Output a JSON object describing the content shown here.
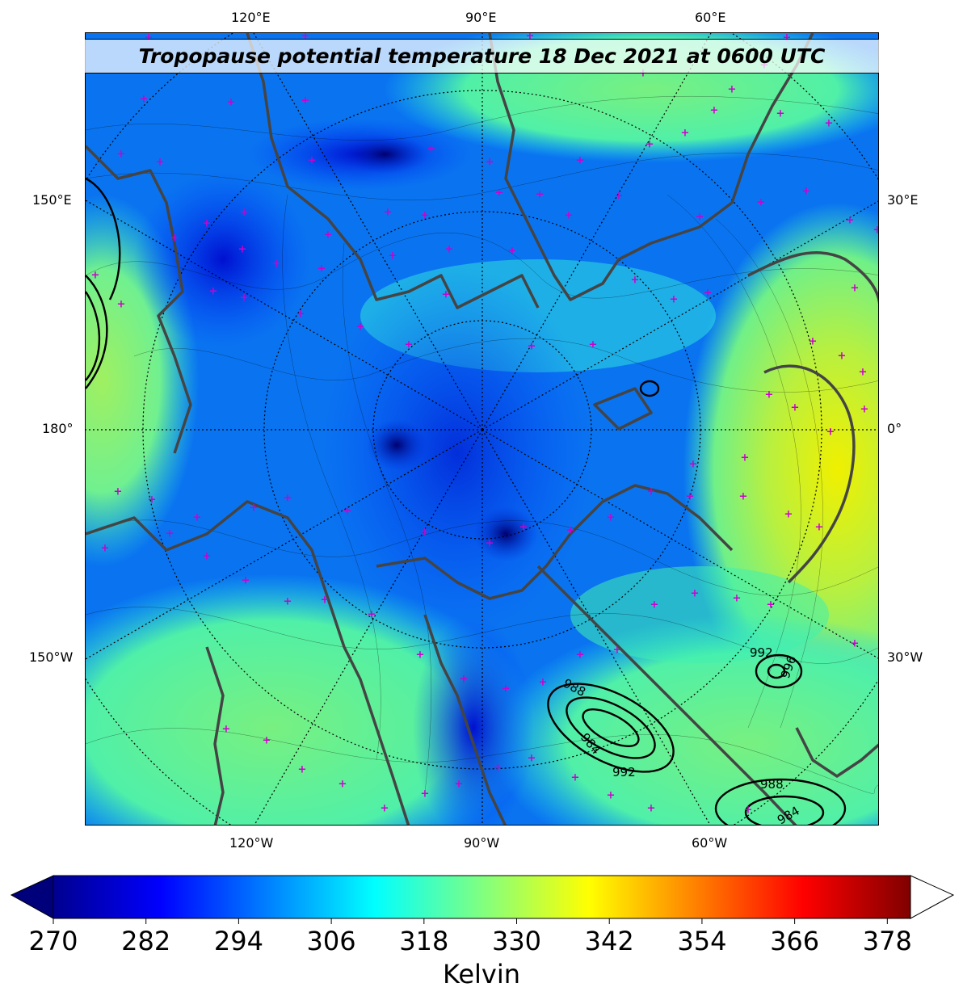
{
  "title": "Tropopause potential temperature 18 Dec 2021 at 0600 UTC",
  "projection": "north-polar-stereographic",
  "axis_labels": {
    "top": [
      "120°E",
      "90°E",
      "60°E"
    ],
    "bottom": [
      "120°W",
      "90°W",
      "60°W"
    ],
    "left": [
      "150°E",
      "180°",
      "150°W"
    ],
    "right": [
      "30°E",
      "0°",
      "30°W"
    ]
  },
  "colorbar": {
    "label": "Kelvin",
    "ticks": [
      "270",
      "282",
      "294",
      "306",
      "318",
      "330",
      "342",
      "354",
      "366",
      "378"
    ],
    "min": 270,
    "max": 381,
    "extend": "both",
    "colormap": "jet",
    "colors": [
      "#00008f",
      "#0000ff",
      "#0080ff",
      "#00ffff",
      "#80ff80",
      "#ffff00",
      "#ff8000",
      "#ff0000",
      "#800000"
    ]
  },
  "pressure_contours": {
    "units": "hPa",
    "labels": [
      "992",
      "996",
      "988",
      "984",
      "992",
      "988",
      "984"
    ]
  },
  "markers": {
    "symbol": "+",
    "color": "#cc00cc"
  },
  "coastline_color": "#444444"
}
